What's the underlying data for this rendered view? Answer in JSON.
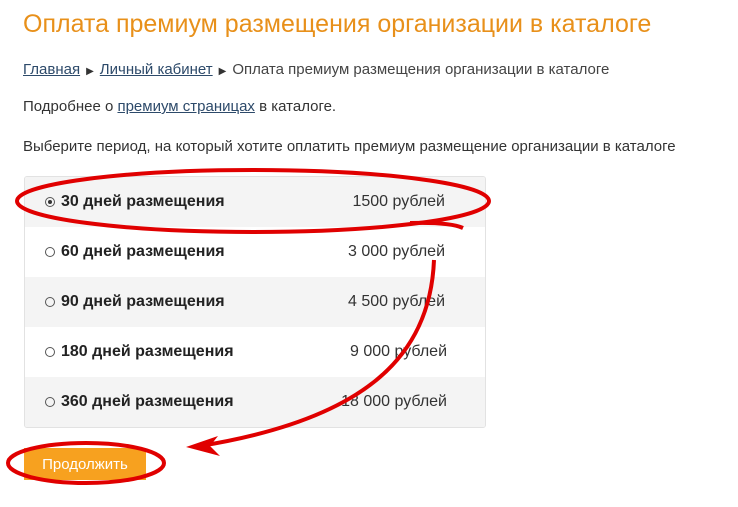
{
  "title": "Оплата премиум размещения организации в каталоге",
  "breadcrumb": {
    "home": "Главная",
    "cabinet": "Личный кабинет",
    "current": "Оплата премиум размещения организации в каталоге"
  },
  "info": {
    "prefix": "Подробнее о ",
    "link": "премиум страницах",
    "suffix": " в каталоге."
  },
  "prompt": "Выберите период, на который хотите оплатить премиум размещение организации в каталоге",
  "options": [
    {
      "label": "30 дней размещения",
      "price": "1500  рублей",
      "selected": true
    },
    {
      "label": "60 дней размещения",
      "price": "3 000  рублей",
      "selected": false
    },
    {
      "label": "90 дней размещения",
      "price": "4 500  рублей",
      "selected": false
    },
    {
      "label": "180 дней размещения",
      "price": "9 000 рублей",
      "selected": false
    },
    {
      "label": "360 дней размещения",
      "price": "18 000 рублей",
      "selected": false
    }
  ],
  "continue_label": "Продолжить",
  "colors": {
    "accent": "#e8901a",
    "button": "#f7a11f",
    "annotation": "#e00000"
  }
}
